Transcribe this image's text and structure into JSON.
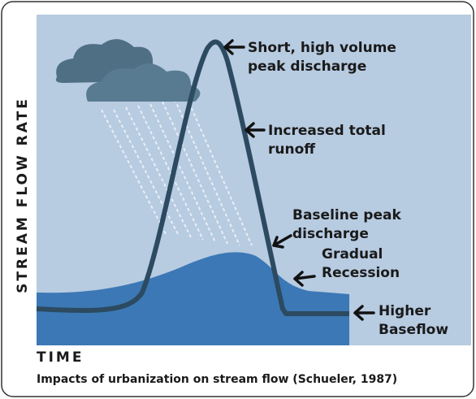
{
  "axis_labels": {
    "y": "STREAM FLOW RATE",
    "x": "TIME"
  },
  "annotations": [
    {
      "lines": [
        "Short, high volume",
        "peak discharge"
      ]
    },
    {
      "lines": [
        "Increased total",
        "runoff"
      ]
    },
    {
      "lines": [
        "Baseline peak",
        "discharge"
      ]
    },
    {
      "lines": [
        "Gradual",
        "Recession"
      ]
    },
    {
      "lines": [
        "Higher",
        "Baseflow"
      ]
    }
  ],
  "caption": "Impacts of urbanization on stream flow (Schueler, 1987)"
}
